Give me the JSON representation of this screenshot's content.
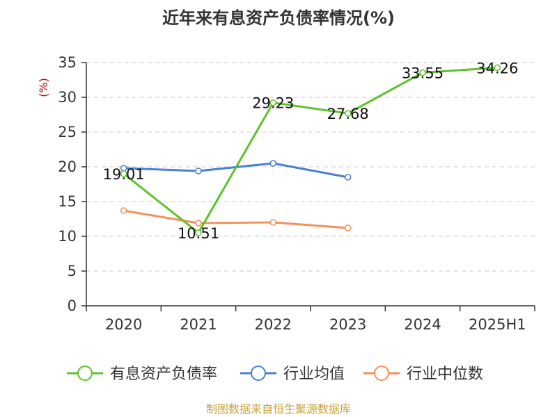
{
  "chart_data": {
    "type": "line",
    "title": "近年来有息资产负债率情况(%)",
    "ylabel": "(%)",
    "xlabel": "",
    "categories": [
      "2020",
      "2021",
      "2022",
      "2023",
      "2024",
      "2025H1"
    ],
    "ylim": [
      0,
      35
    ],
    "yticks": [
      0,
      5,
      10,
      15,
      20,
      25,
      30,
      35
    ],
    "grid": true,
    "legend_position": "bottom",
    "series": [
      {
        "name": "有息资产负债率",
        "color": "#5ec12a",
        "values": [
          19.01,
          10.51,
          29.23,
          27.68,
          33.55,
          34.26
        ],
        "labels": [
          "19.01",
          "10.51",
          "29.23",
          "27.68",
          "33.55",
          "34.26"
        ]
      },
      {
        "name": "行业均值",
        "color": "#4a7fd6",
        "values": [
          19.8,
          19.4,
          20.5,
          18.5,
          null,
          null
        ]
      },
      {
        "name": "行业中位数",
        "color": "#f5905a",
        "values": [
          13.7,
          11.9,
          12.0,
          11.2,
          null,
          null
        ]
      }
    ]
  },
  "source": "制图数据来自恒生聚源数据库"
}
